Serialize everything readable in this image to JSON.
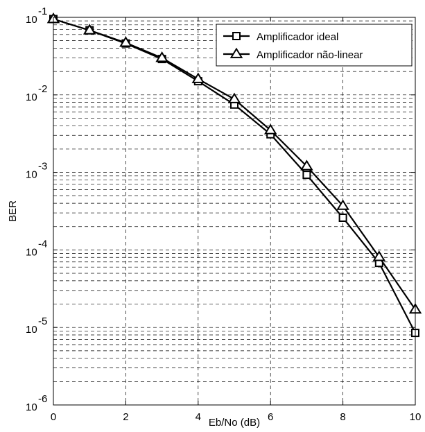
{
  "chart_data": {
    "type": "line",
    "title": "",
    "xlabel": "Eb/No (dB)",
    "ylabel": "BER",
    "x": [
      0,
      1,
      2,
      3,
      4,
      5,
      6,
      7,
      8,
      9,
      10
    ],
    "xlim": [
      0,
      10
    ],
    "ylim": [
      1e-06,
      0.1
    ],
    "yscale": "log",
    "grid": true,
    "legend_position": "top-right",
    "x_ticks": [
      "0",
      "2",
      "4",
      "6",
      "8",
      "10"
    ],
    "y_ticks": [
      {
        "base": "10",
        "exp": "-6"
      },
      {
        "base": "10",
        "exp": "-5"
      },
      {
        "base": "10",
        "exp": "-4"
      },
      {
        "base": "10",
        "exp": "-3"
      },
      {
        "base": "10",
        "exp": "-2"
      },
      {
        "base": "10",
        "exp": "-1"
      }
    ],
    "series": [
      {
        "name": "Amplificador ideal",
        "marker": "square",
        "values": [
          0.095,
          0.068,
          0.046,
          0.029,
          0.015,
          0.0075,
          0.0031,
          0.00093,
          0.00026,
          6.8e-05,
          8.5e-06
        ]
      },
      {
        "name": "Amplificador não-linear",
        "marker": "triangle",
        "values": [
          0.095,
          0.068,
          0.047,
          0.03,
          0.016,
          0.0088,
          0.0035,
          0.0012,
          0.00037,
          8.1e-05,
          1.7e-05
        ]
      }
    ],
    "colors": {
      "line": "#000000",
      "grid": "#000000",
      "background": "#ffffff"
    }
  }
}
